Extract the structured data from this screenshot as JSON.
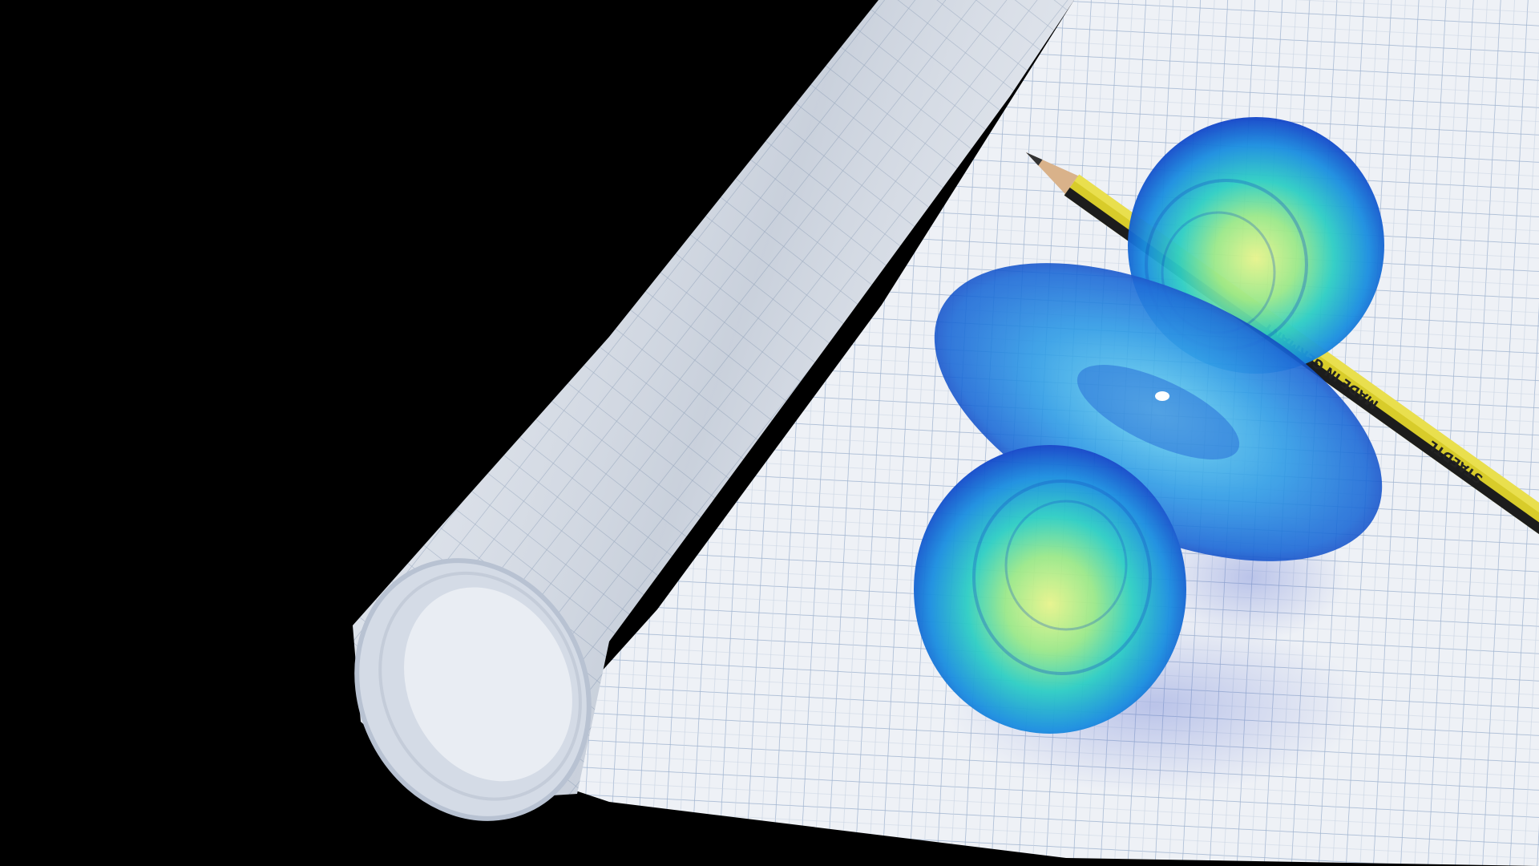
{
  "scene": {
    "pencil": {
      "imprint": "MADE IN GERMANY",
      "brand": "STAEDTL"
    }
  }
}
